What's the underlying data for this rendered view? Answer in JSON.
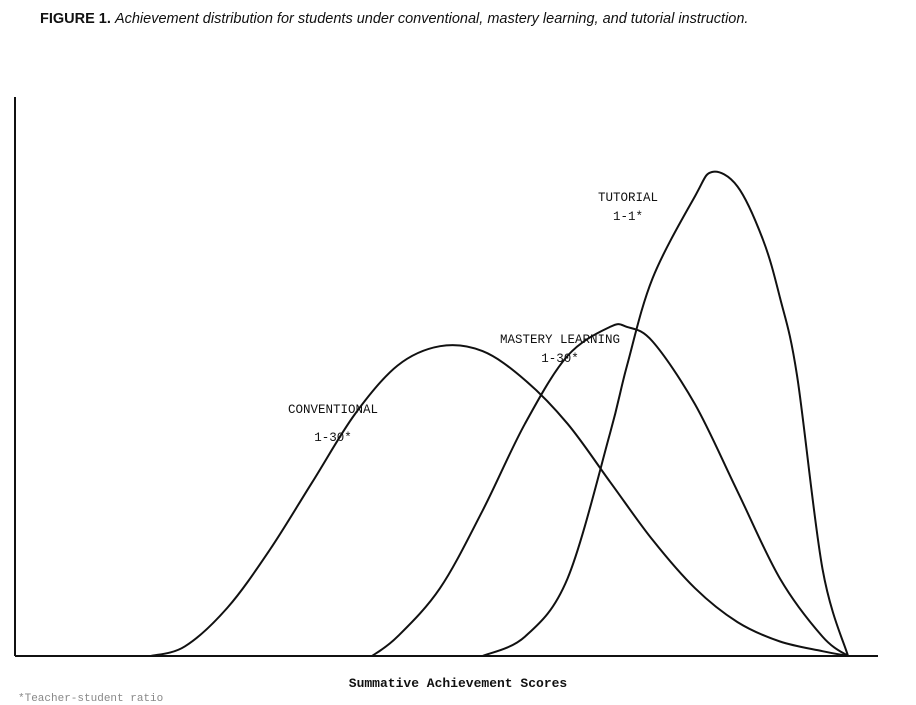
{
  "caption": {
    "label": "FIGURE 1.",
    "text": "Achievement distribution for students under conventional, mastery learning, and tutorial instruction."
  },
  "chart_data": {
    "type": "line",
    "title": "",
    "xlabel": "Summative Achievement Scores",
    "ylabel": "",
    "grid": false,
    "xlim": [
      0,
      100
    ],
    "ylim": [
      0,
      100
    ],
    "series": [
      {
        "label_lines": [
          "CONVENTIONAL",
          "1-30*"
        ],
        "x": [
          16,
          20,
          25,
          30,
          35,
          40,
          45,
          50,
          55,
          60,
          65,
          70,
          75,
          80,
          85,
          90,
          95,
          98
        ],
        "y": [
          0,
          2,
          10,
          22,
          36,
          50,
          60,
          64,
          63,
          57,
          48,
          36,
          24,
          14,
          7,
          3,
          1,
          0
        ]
      },
      {
        "label_lines": [
          "MASTERY LEARNING",
          "1-30*"
        ],
        "x": [
          42,
          45,
          50,
          55,
          60,
          65,
          70,
          72,
          75,
          80,
          85,
          90,
          95,
          98
        ],
        "y": [
          0,
          4,
          14,
          30,
          48,
          62,
          68,
          68,
          65,
          52,
          34,
          16,
          4,
          0
        ]
      },
      {
        "label_lines": [
          "TUTORIAL",
          "1-1*"
        ],
        "x": [
          55,
          60,
          65,
          70,
          72,
          75,
          80,
          82,
          85,
          88,
          90,
          92,
          95,
          98
        ],
        "y": [
          0,
          4,
          16,
          46,
          60,
          78,
          95,
          100,
          97,
          86,
          74,
          58,
          18,
          0
        ]
      }
    ],
    "footnote": "*Teacher-student ratio"
  }
}
